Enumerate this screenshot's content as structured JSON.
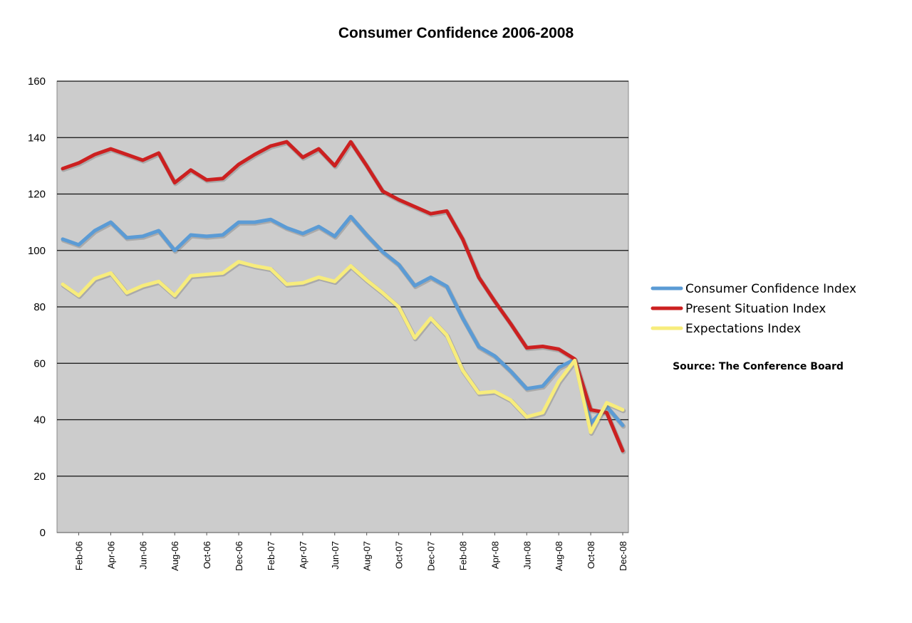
{
  "chart_data": {
    "type": "line",
    "title": "Consumer Confidence 2006-2008",
    "xlabel": "",
    "ylabel": "",
    "ylim": [
      0,
      160
    ],
    "y_ticks": [
      0,
      20,
      40,
      60,
      80,
      100,
      120,
      140,
      160
    ],
    "grid": true,
    "legend_position": "right",
    "source": "Source: The Conference Board",
    "categories": [
      "Jan-06",
      "Feb-06",
      "Mar-06",
      "Apr-06",
      "May-06",
      "Jun-06",
      "Jul-06",
      "Aug-06",
      "Sep-06",
      "Oct-06",
      "Nov-06",
      "Dec-06",
      "Jan-07",
      "Feb-07",
      "Mar-07",
      "Apr-07",
      "May-07",
      "Jun-07",
      "Jul-07",
      "Aug-07",
      "Sep-07",
      "Oct-07",
      "Nov-07",
      "Dec-07",
      "Jan-08",
      "Feb-08",
      "Mar-08",
      "Apr-08",
      "May-08",
      "Jun-08",
      "Jul-08",
      "Aug-08",
      "Sep-08",
      "Oct-08",
      "Nov-08",
      "Dec-08"
    ],
    "x_tick_labels": [
      "Feb-06",
      "Apr-06",
      "Jun-06",
      "Aug-06",
      "Oct-06",
      "Dec-06",
      "Feb-07",
      "Apr-07",
      "Jun-07",
      "Aug-07",
      "Oct-07",
      "Dec-07",
      "Feb-08",
      "Apr-08",
      "Jun-08",
      "Aug-08",
      "Oct-08",
      "Dec-08"
    ],
    "series": [
      {
        "name": "Consumer Confidence Index",
        "color": "#5b9bd5",
        "values": [
          104,
          102,
          107,
          110,
          104.5,
          105,
          107,
          100,
          105.5,
          105,
          105.5,
          110,
          110,
          111,
          108,
          106,
          108.5,
          105,
          112,
          105.5,
          99.5,
          95,
          87.5,
          90.5,
          87.3,
          76,
          65.9,
          62.6,
          57.2,
          51,
          51.9,
          58.5,
          61.4,
          38.8,
          44.7,
          38
        ]
      },
      {
        "name": "Present Situation Index",
        "color": "#cc2020",
        "values": [
          129,
          131,
          134,
          136,
          134,
          132,
          134.5,
          124,
          128.5,
          125,
          125.5,
          130.5,
          134,
          137,
          138.5,
          133,
          136,
          130,
          138.5,
          130,
          121,
          118,
          115.5,
          113,
          114,
          104,
          90.5,
          82,
          74,
          65.5,
          66,
          65,
          61.5,
          43.5,
          42.5,
          29
        ]
      },
      {
        "name": "Expectations Index",
        "color": "#f7ec7c",
        "values": [
          88,
          84,
          90,
          92,
          85,
          87.5,
          89,
          84,
          91,
          91.5,
          92,
          96,
          94.5,
          93.5,
          88,
          88.5,
          90.5,
          89,
          94.5,
          89.5,
          85,
          80,
          69,
          76,
          70,
          57.5,
          49.5,
          50,
          47,
          41,
          42.5,
          53.5,
          61,
          35.5,
          46,
          43.5
        ]
      }
    ]
  }
}
